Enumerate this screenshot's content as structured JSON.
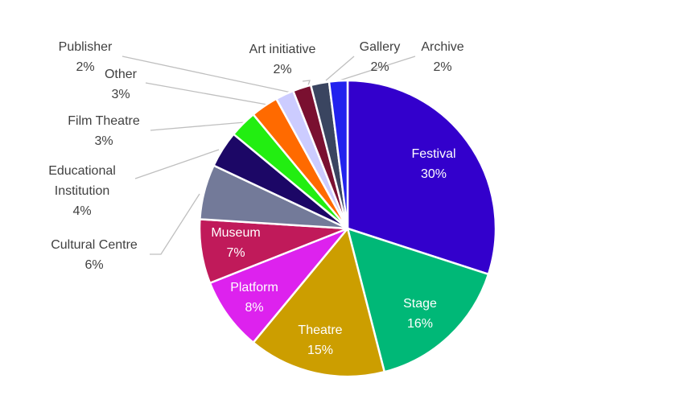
{
  "chart_data": {
    "type": "pie",
    "title": "",
    "start": "top, clockwise",
    "data_labels": "category name and percentage",
    "slices": [
      {
        "name": "Festival",
        "label": "30%",
        "value": 30,
        "color": "#3300cc"
      },
      {
        "name": "Stage",
        "label": "16%",
        "value": 16,
        "color": "#00b877"
      },
      {
        "name": "Theatre",
        "label": "15%",
        "value": 15,
        "color": "#cc9e00"
      },
      {
        "name": "Platform",
        "label": "8%",
        "value": 8,
        "color": "#dd22ee"
      },
      {
        "name": "Museum",
        "label": "7%",
        "value": 7,
        "color": "#c01a5a"
      },
      {
        "name": "Cultural Centre",
        "label": "6%",
        "value": 6,
        "color": "#737a99"
      },
      {
        "name": "Educational Institution",
        "label": "4%",
        "value": 4,
        "color": "#1c0766"
      },
      {
        "name": "Film Theatre",
        "label": "3%",
        "value": 3,
        "color": "#22ee11"
      },
      {
        "name": "Other",
        "label": "3%",
        "value": 3,
        "color": "#ff6a00"
      },
      {
        "name": "Publisher",
        "label": "2%",
        "value": 2,
        "color": "#ccccff"
      },
      {
        "name": "Art initiative",
        "label": "2%",
        "value": 2,
        "color": "#7a1030"
      },
      {
        "name": "Gallery",
        "label": "2%",
        "value": 2,
        "color": "#3a4560"
      },
      {
        "name": "Archive",
        "label": "2%",
        "value": 2,
        "color": "#2222ee"
      }
    ]
  }
}
